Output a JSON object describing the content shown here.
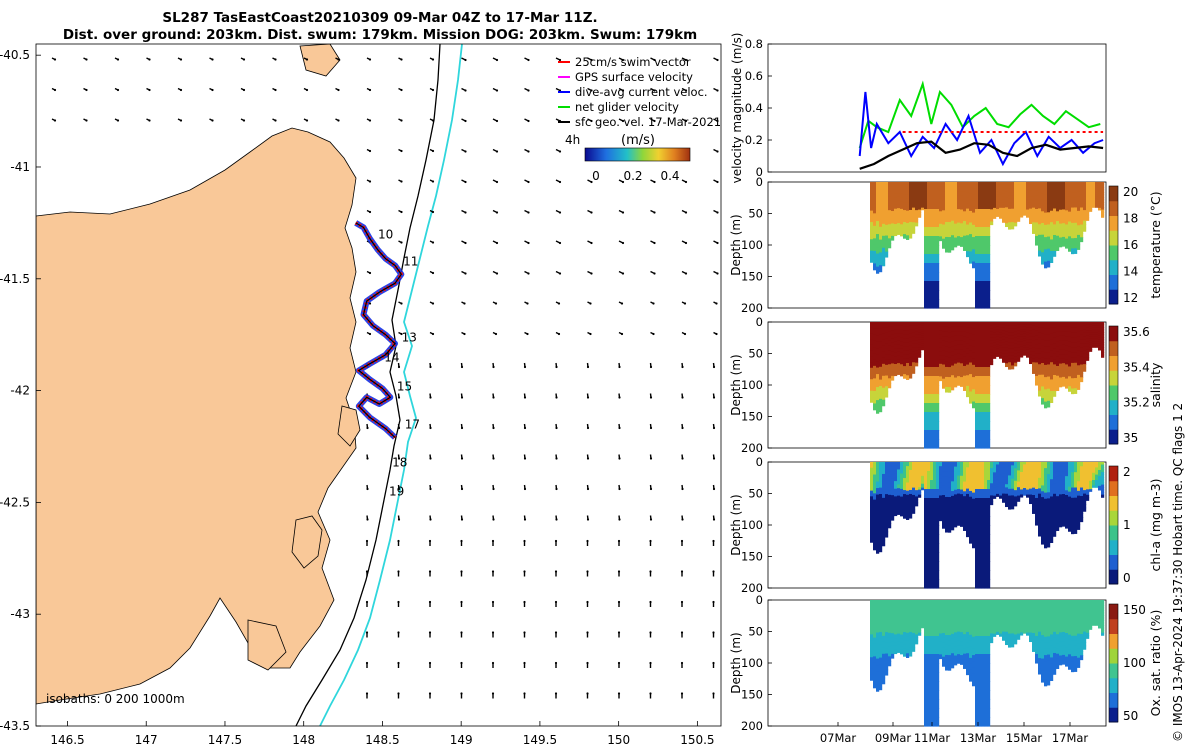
{
  "header": {
    "title_line1": "SL287 TasEastCoast20210309 09-Mar 04Z to 17-Mar 11Z.",
    "title_line2": "Dist. over ground: 203km. Dist. swum: 179km. Mission DOG: 203km. Swum: 179km"
  },
  "credit": "© IMOS 13-Apr-2024 19:37:30 Hobart time. QC flags 1  2",
  "chart_data": [
    {
      "type": "map",
      "name": "glider-track-map",
      "xlim": [
        146.3,
        150.65
      ],
      "ylim": [
        -43.5,
        -40.45
      ],
      "x_ticks": [
        146.5,
        147,
        147.5,
        148,
        148.5,
        149,
        149.5,
        150,
        150.5
      ],
      "x_tick_labels": [
        "146.5",
        "147",
        "147.5",
        "148",
        "148.5",
        "149",
        "149.5",
        "150",
        "150.5"
      ],
      "y_ticks": [
        -40.5,
        -41,
        -41.5,
        -42,
        -42.5,
        -43,
        -43.5
      ],
      "y_tick_labels": [
        "-40.5",
        "-41",
        "-41.5",
        "-42",
        "-42.5",
        "-43",
        "-43.5"
      ],
      "legend": [
        {
          "label": "25cm/s swim vector",
          "color": "#ff0000"
        },
        {
          "label": "GPS surface velocity",
          "color": "#ff00ff"
        },
        {
          "label": "dive-avg current veloc.",
          "color": "#0000ff"
        },
        {
          "label": "net glider velocity",
          "color": "#00dd00"
        },
        {
          "label": "sfc geo. vel. 17-Mar-2021",
          "color": "#000000"
        }
      ],
      "colorbar": {
        "title": "(m/s)",
        "side_label": "4h",
        "ticks": [
          "0",
          "0.2",
          "0.4"
        ],
        "range": [
          0,
          0.5
        ]
      },
      "isobath_note": "isobaths: 0   200 1000m",
      "track": [
        [
          148.33,
          -41.25
        ],
        [
          148.38,
          -41.27
        ],
        [
          148.42,
          -41.32
        ],
        [
          148.47,
          -41.37
        ],
        [
          148.52,
          -41.41
        ],
        [
          148.58,
          -41.44
        ],
        [
          148.62,
          -41.48
        ],
        [
          148.58,
          -41.52
        ],
        [
          148.48,
          -41.56
        ],
        [
          148.4,
          -41.6
        ],
        [
          148.38,
          -41.66
        ],
        [
          148.44,
          -41.71
        ],
        [
          148.52,
          -41.75
        ],
        [
          148.58,
          -41.79
        ],
        [
          148.52,
          -41.84
        ],
        [
          148.42,
          -41.88
        ],
        [
          148.35,
          -41.91
        ],
        [
          148.42,
          -41.95
        ],
        [
          148.5,
          -41.99
        ],
        [
          148.55,
          -42.03
        ],
        [
          148.48,
          -42.06
        ],
        [
          148.4,
          -42.03
        ],
        [
          148.35,
          -42.07
        ],
        [
          148.42,
          -42.12
        ],
        [
          148.52,
          -42.17
        ],
        [
          148.58,
          -42.21
        ]
      ],
      "day_markers": [
        {
          "label": "10",
          "lon": 148.52,
          "lat": -41.32
        },
        {
          "label": "11",
          "lon": 148.68,
          "lat": -41.44
        },
        {
          "label": "13",
          "lon": 148.67,
          "lat": -41.78
        },
        {
          "label": "14",
          "lon": 148.56,
          "lat": -41.87
        },
        {
          "label": "15",
          "lon": 148.64,
          "lat": -42.0
        },
        {
          "label": "17",
          "lon": 148.69,
          "lat": -42.17
        },
        {
          "label": "18",
          "lon": 148.61,
          "lat": -42.34
        },
        {
          "label": "19",
          "lon": 148.59,
          "lat": -42.47
        }
      ]
    },
    {
      "type": "line",
      "name": "velocity-magnitude",
      "ylabel": "velocity magnitude (m/s)",
      "ylim": [
        0,
        0.8
      ],
      "y_ticks": [
        "0",
        "0.2",
        "0.4",
        "0.6",
        "0.8"
      ],
      "xlim_day": [
        5.8,
        17.6
      ],
      "series": [
        {
          "name": "net glider velocity",
          "color": "#00dd00",
          "x": [
            9.0,
            9.3,
            9.6,
            10.0,
            10.4,
            10.8,
            11.2,
            11.5,
            11.8,
            12.2,
            12.6,
            13.0,
            13.4,
            13.8,
            14.2,
            14.6,
            15.0,
            15.4,
            15.8,
            16.2,
            16.6,
            17.0,
            17.4
          ],
          "values": [
            0.15,
            0.32,
            0.28,
            0.25,
            0.45,
            0.35,
            0.55,
            0.3,
            0.5,
            0.42,
            0.28,
            0.35,
            0.4,
            0.3,
            0.28,
            0.36,
            0.42,
            0.35,
            0.3,
            0.38,
            0.33,
            0.28,
            0.3
          ]
        },
        {
          "name": "dive-avg current veloc.",
          "color": "#0000ff",
          "x": [
            9.0,
            9.2,
            9.4,
            9.6,
            10.0,
            10.4,
            10.8,
            11.2,
            11.6,
            12.0,
            12.4,
            12.8,
            13.2,
            13.6,
            14.0,
            14.4,
            14.8,
            15.2,
            15.6,
            16.0,
            16.4,
            16.8,
            17.2,
            17.5
          ],
          "values": [
            0.1,
            0.5,
            0.15,
            0.3,
            0.18,
            0.25,
            0.1,
            0.22,
            0.15,
            0.3,
            0.2,
            0.35,
            0.12,
            0.2,
            0.05,
            0.18,
            0.25,
            0.1,
            0.22,
            0.15,
            0.2,
            0.12,
            0.18,
            0.2
          ]
        },
        {
          "name": "sfc geo. vel. 17-Mar-2021",
          "color": "#000000",
          "x": [
            9.0,
            9.5,
            10.0,
            10.5,
            11.0,
            11.5,
            12.0,
            12.5,
            13.0,
            13.5,
            14.0,
            14.5,
            15.0,
            15.5,
            16.0,
            16.5,
            17.0,
            17.5
          ],
          "values": [
            0.02,
            0.05,
            0.1,
            0.14,
            0.18,
            0.19,
            0.12,
            0.14,
            0.18,
            0.17,
            0.12,
            0.1,
            0.15,
            0.17,
            0.14,
            0.15,
            0.16,
            0.15
          ]
        },
        {
          "name": "25cm/s swim vector",
          "color": "#ff0000",
          "x": [
            10.5,
            13.5,
            16.0,
            17.5
          ],
          "values": [
            0.25,
            0.25,
            0.25,
            0.25
          ]
        }
      ]
    },
    {
      "type": "heatmap",
      "name": "temperature-section",
      "ylabel": "Depth (m)",
      "colorbar_label": "temperature (°C)",
      "colorbar_ticks": [
        "20",
        "18",
        "16",
        "14",
        "12"
      ],
      "y_ticks": [
        "0",
        "50",
        "100",
        "150",
        "200"
      ],
      "colormap": [
        "#0b1f8c",
        "#1e6fd8",
        "#21b0c8",
        "#4fc86a",
        "#c7d43a",
        "#f0a030",
        "#c0601f",
        "#8a3a12"
      ]
    },
    {
      "type": "heatmap",
      "name": "salinity-section",
      "ylabel": "Depth (m)",
      "colorbar_label": "salinity",
      "colorbar_ticks": [
        "35.6",
        "35.4",
        "35.2",
        "35"
      ],
      "y_ticks": [
        "0",
        "50",
        "100",
        "150",
        "200"
      ],
      "colormap": [
        "#0b1f8c",
        "#1e6fd8",
        "#21b0c8",
        "#4fc86a",
        "#c7d43a",
        "#f0a030",
        "#c0601f",
        "#8b0d0d"
      ]
    },
    {
      "type": "heatmap",
      "name": "chla-section",
      "ylabel": "Depth (m)",
      "colorbar_label": "chl-a (mg m-3)",
      "colorbar_ticks": [
        "2",
        "1",
        "0"
      ],
      "y_ticks": [
        "0",
        "50",
        "100",
        "150",
        "200"
      ],
      "colormap": [
        "#0a1a7a",
        "#1e5fd0",
        "#21b0c8",
        "#3cc38a",
        "#a9d63a",
        "#f0c030",
        "#e07020",
        "#b02010"
      ]
    },
    {
      "type": "heatmap",
      "name": "oxygen-section",
      "ylabel": "Depth (m)",
      "colorbar_label": "Ox. sat. ratio (%)",
      "colorbar_ticks": [
        "150",
        "100",
        "50"
      ],
      "y_ticks": [
        "0",
        "50",
        "100",
        "150",
        "200"
      ],
      "x_tick_labels": [
        "07Mar",
        "09Mar",
        "11Mar",
        "13Mar",
        "15Mar",
        "17Mar"
      ],
      "colormap": [
        "#0b1f8c",
        "#1e6fd8",
        "#21b0c8",
        "#40c490",
        "#9fd43a",
        "#f0a030",
        "#c0401f",
        "#8a1a12"
      ]
    }
  ]
}
